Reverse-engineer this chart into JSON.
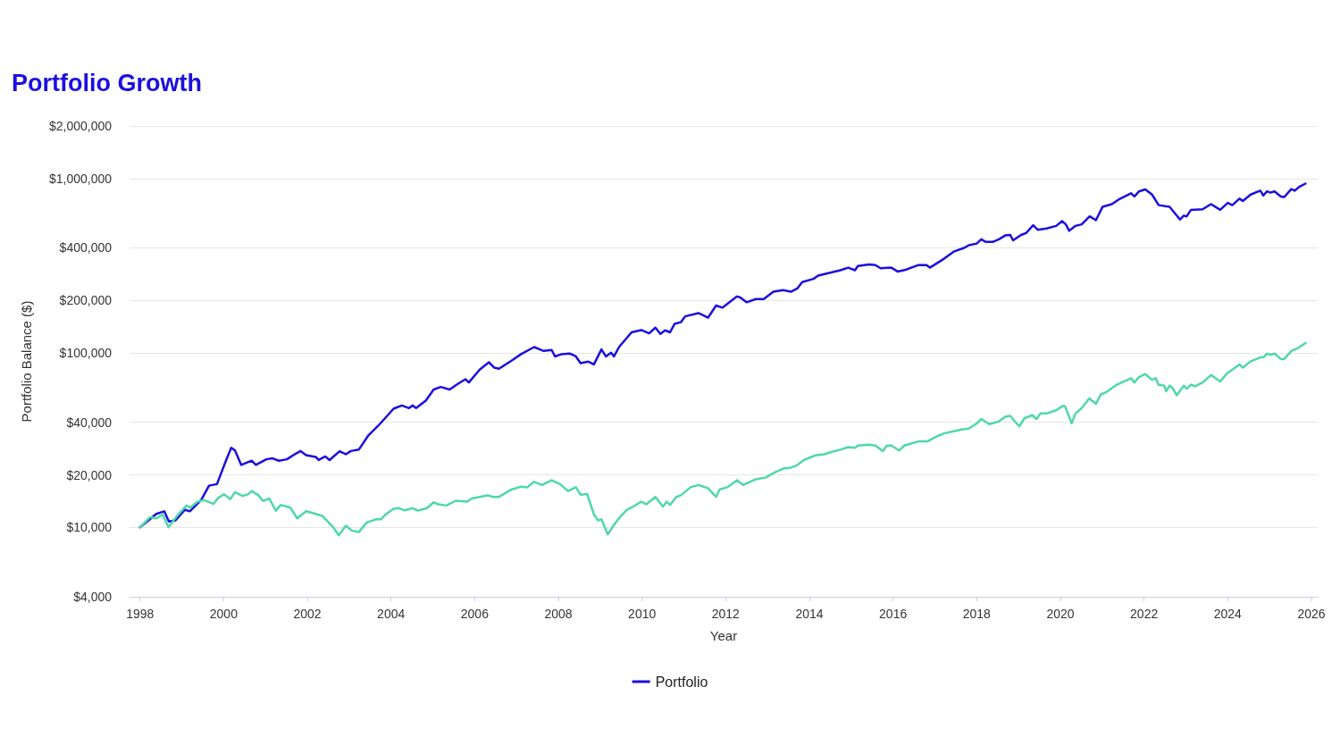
{
  "chart_data": {
    "type": "line",
    "title": "Portfolio Growth",
    "xlabel": "Year",
    "ylabel": "Portfolio Balance ($)",
    "log": "y",
    "grid": "y",
    "legend": "bottom",
    "marker": "none",
    "line_style": "solid",
    "xlim": [
      1997.75,
      2026.15
    ],
    "xticks": [
      1998,
      2000,
      2002,
      2004,
      2006,
      2008,
      2010,
      2012,
      2014,
      2016,
      2018,
      2020,
      2022,
      2024,
      2026
    ],
    "ylim": [
      4000,
      2000000
    ],
    "yticks": [
      {
        "value": 4000,
        "label": "$4,000"
      },
      {
        "value": 10000,
        "label": "$10,000"
      },
      {
        "value": 20000,
        "label": "$20,000"
      },
      {
        "value": 40000,
        "label": "$40,000"
      },
      {
        "value": 100000,
        "label": "$100,000"
      },
      {
        "value": 200000,
        "label": "$200,000"
      },
      {
        "value": 400000,
        "label": "$400,000"
      },
      {
        "value": 1000000,
        "label": "$1,000,000"
      },
      {
        "value": 2000000,
        "label": "$2,000,000"
      }
    ],
    "series": [
      {
        "name": "Portfolio",
        "color": "#1a0fe0",
        "x": [
          1998.0,
          1998.39,
          1998.58,
          1998.69,
          1998.85,
          1999.07,
          1999.19,
          1999.46,
          1999.65,
          1999.84,
          2000.06,
          2000.18,
          2000.27,
          2000.42,
          2000.67,
          2000.77,
          2001.02,
          2001.17,
          2001.32,
          2001.51,
          2001.7,
          2001.84,
          2001.97,
          2002.2,
          2002.27,
          2002.43,
          2002.53,
          2002.77,
          2002.92,
          2003.04,
          2003.23,
          2003.46,
          2003.68,
          2003.87,
          2004.06,
          2004.26,
          2004.43,
          2004.52,
          2004.6,
          2004.83,
          2005.02,
          2005.19,
          2005.4,
          2005.63,
          2005.78,
          2005.86,
          2006.12,
          2006.34,
          2006.47,
          2006.58,
          2006.88,
          2007.11,
          2007.42,
          2007.65,
          2007.84,
          2007.92,
          2008.08,
          2008.27,
          2008.42,
          2008.53,
          2008.72,
          2008.85,
          2009.03,
          2009.14,
          2009.26,
          2009.33,
          2009.45,
          2009.75,
          2009.98,
          2010.17,
          2010.32,
          2010.44,
          2010.55,
          2010.67,
          2010.78,
          2010.93,
          2011.03,
          2011.35,
          2011.58,
          2011.77,
          2011.92,
          2012.27,
          2012.34,
          2012.5,
          2012.72,
          2012.91,
          2013.14,
          2013.37,
          2013.56,
          2013.71,
          2013.83,
          2014.1,
          2014.21,
          2014.52,
          2014.74,
          2014.93,
          2015.09,
          2015.16,
          2015.43,
          2015.58,
          2015.7,
          2015.96,
          2016.11,
          2016.3,
          2016.61,
          2016.8,
          2016.88,
          2017.22,
          2017.45,
          2017.71,
          2017.81,
          2018.0,
          2018.11,
          2018.22,
          2018.38,
          2018.53,
          2018.68,
          2018.8,
          2018.87,
          2019.06,
          2019.18,
          2019.35,
          2019.46,
          2019.67,
          2019.9,
          2020.04,
          2020.13,
          2020.21,
          2020.36,
          2020.51,
          2020.7,
          2020.85,
          2021.01,
          2021.23,
          2021.39,
          2021.69,
          2021.77,
          2021.88,
          2022.03,
          2022.19,
          2022.35,
          2022.61,
          2022.86,
          2022.95,
          2023.02,
          2023.12,
          2023.4,
          2023.6,
          2023.82,
          2024.0,
          2024.11,
          2024.28,
          2024.36,
          2024.55,
          2024.78,
          2024.85,
          2024.94,
          2025.02,
          2025.12,
          2025.27,
          2025.35,
          2025.52,
          2025.6,
          2025.71,
          2025.86
        ],
        "values": [
          10000,
          11950,
          12360,
          10790,
          10970,
          12620,
          12360,
          14330,
          17340,
          17700,
          24320,
          28580,
          27620,
          22800,
          24100,
          22800,
          24550,
          24860,
          24100,
          24550,
          26250,
          27380,
          25950,
          25350,
          24320,
          25500,
          24320,
          27300,
          26250,
          27380,
          27880,
          33700,
          37940,
          42560,
          47870,
          49950,
          48270,
          49950,
          48270,
          53200,
          61700,
          63800,
          61700,
          67200,
          70700,
          67700,
          80200,
          88400,
          82300,
          81200,
          90300,
          98400,
          108000,
          102600,
          103900,
          95500,
          98400,
          99200,
          95500,
          87300,
          89100,
          85900,
          104700,
          95500,
          100400,
          95500,
          108000,
          131200,
          135200,
          129500,
          139600,
          128500,
          134700,
          131200,
          146900,
          150000,
          162000,
          169100,
          159300,
          187000,
          181700,
          210700,
          208600,
          195100,
          203500,
          203500,
          224300,
          229200,
          224300,
          234100,
          254900,
          265900,
          277300,
          289400,
          297800,
          308200,
          297800,
          315000,
          321700,
          318900,
          305700,
          308200,
          292800,
          299400,
          318900,
          318900,
          308200,
          346800,
          380700,
          401000,
          414500,
          423600,
          448000,
          432700,
          432700,
          448000,
          471100,
          474700,
          442100,
          474700,
          487000,
          539400,
          508000,
          516700,
          534800,
          569500,
          545700,
          501400,
          534800,
          545700,
          606600,
          576600,
          688500,
          712500,
          756300,
          823000,
          788600,
          843600,
          866100,
          809300,
          703400,
          688500,
          581600,
          612300,
          606600,
          660700,
          666000,
          712500,
          660700,
          724600,
          703400,
          765800,
          743500,
          809300,
          851100,
          799000,
          843600,
          829500,
          843600,
          788600,
          782300,
          869000,
          851100,
          895700,
          934700
        ]
      },
      {
        "color": "#4fd8a8",
        "x": [
          1998.0,
          1998.24,
          1998.39,
          1998.54,
          1998.68,
          1998.88,
          1999.11,
          1999.2,
          1999.38,
          1999.53,
          1999.76,
          1999.87,
          2000.01,
          2000.16,
          2000.27,
          2000.45,
          2000.58,
          2000.67,
          2000.83,
          2000.94,
          2001.09,
          2001.25,
          2001.36,
          2001.59,
          2001.76,
          2001.97,
          2002.2,
          2002.37,
          2002.62,
          2002.75,
          2002.92,
          2003.06,
          2003.23,
          2003.42,
          2003.65,
          2003.76,
          2003.87,
          2004.06,
          2004.18,
          2004.33,
          2004.52,
          2004.64,
          2004.86,
          2005.02,
          2005.13,
          2005.32,
          2005.55,
          2005.82,
          2005.93,
          2006.31,
          2006.43,
          2006.58,
          2006.88,
          2007.11,
          2007.26,
          2007.42,
          2007.61,
          2007.84,
          2008.04,
          2008.23,
          2008.42,
          2008.53,
          2008.69,
          2008.85,
          2008.95,
          2009.03,
          2009.18,
          2009.33,
          2009.49,
          2009.64,
          2009.79,
          2009.98,
          2010.1,
          2010.32,
          2010.5,
          2010.59,
          2010.67,
          2010.82,
          2010.93,
          2011.16,
          2011.35,
          2011.58,
          2011.77,
          2011.85,
          2012.04,
          2012.27,
          2012.42,
          2012.72,
          2012.95,
          2013.18,
          2013.41,
          2013.52,
          2013.68,
          2013.87,
          2014.02,
          2014.17,
          2014.36,
          2014.52,
          2014.74,
          2014.93,
          2015.09,
          2015.16,
          2015.43,
          2015.58,
          2015.76,
          2015.85,
          2015.96,
          2016.15,
          2016.27,
          2016.61,
          2016.82,
          2017.07,
          2017.22,
          2017.64,
          2017.81,
          2018.0,
          2018.11,
          2018.3,
          2018.53,
          2018.68,
          2018.8,
          2018.9,
          2019.02,
          2019.14,
          2019.33,
          2019.43,
          2019.52,
          2019.67,
          2019.9,
          2020.05,
          2020.11,
          2020.27,
          2020.36,
          2020.51,
          2020.69,
          2020.85,
          2020.97,
          2021.08,
          2021.35,
          2021.69,
          2021.77,
          2021.87,
          2022.03,
          2022.19,
          2022.28,
          2022.34,
          2022.48,
          2022.53,
          2022.61,
          2022.68,
          2022.78,
          2022.95,
          2023.02,
          2023.12,
          2023.22,
          2023.4,
          2023.6,
          2023.82,
          2023.98,
          2024.09,
          2024.28,
          2024.36,
          2024.55,
          2024.78,
          2024.85,
          2024.94,
          2025.02,
          2025.12,
          2025.27,
          2025.35,
          2025.52,
          2025.69,
          2025.86
        ],
        "values": [
          10000,
          11450,
          11260,
          11840,
          10000,
          11590,
          13340,
          13000,
          14030,
          14330,
          13620,
          14760,
          15460,
          14520,
          15910,
          15140,
          15460,
          16150,
          15270,
          14160,
          14630,
          12460,
          13450,
          13000,
          11260,
          12360,
          11950,
          11590,
          10000,
          9000,
          10210,
          9590,
          9390,
          10660,
          11120,
          11120,
          11840,
          12790,
          12890,
          12510,
          12890,
          12460,
          12890,
          13910,
          13560,
          13340,
          14210,
          14030,
          14630,
          15270,
          14950,
          14950,
          16480,
          17100,
          16980,
          18250,
          17490,
          18620,
          17700,
          16150,
          16980,
          15400,
          15520,
          11840,
          10970,
          11120,
          9110,
          10340,
          11590,
          12620,
          13160,
          14030,
          13560,
          14950,
          13160,
          14030,
          13450,
          14950,
          15270,
          16980,
          17490,
          16750,
          14950,
          16480,
          16980,
          18620,
          17490,
          18880,
          19280,
          20700,
          21870,
          21870,
          22530,
          24320,
          25180,
          25950,
          26250,
          27040,
          27880,
          28820,
          28580,
          29440,
          29820,
          29440,
          27380,
          29440,
          29440,
          27600,
          29440,
          31090,
          31090,
          33420,
          34560,
          36380,
          36840,
          39400,
          41800,
          39080,
          40430,
          43040,
          43600,
          40800,
          37940,
          42170,
          43950,
          41800,
          44940,
          44940,
          46900,
          49550,
          49550,
          39540,
          44940,
          48270,
          54850,
          51030,
          57970,
          59170,
          65800,
          71600,
          67700,
          72450,
          75650,
          70150,
          71600,
          65800,
          64920,
          60400,
          64920,
          63100,
          57170,
          64920,
          62250,
          65800,
          64400,
          67700,
          74650,
          68600,
          76190,
          79560,
          85900,
          82300,
          89570,
          94200,
          94200,
          99100,
          97500,
          99100,
          92250,
          92250,
          102500,
          107000,
          114000
        ]
      }
    ]
  }
}
